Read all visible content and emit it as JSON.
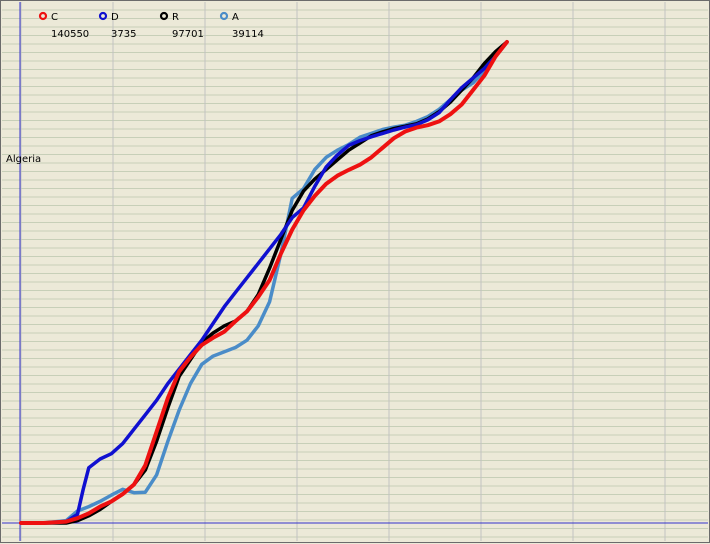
{
  "chart_data": {
    "type": "line",
    "region_label": "Algeria",
    "grid": true,
    "legend_placement": "top-left",
    "series": [
      {
        "name": "C",
        "count": "140550",
        "color": "#ee1111",
        "points": [
          [
            0,
            0
          ],
          [
            4,
            0
          ],
          [
            8,
            0.3
          ],
          [
            10,
            1
          ],
          [
            12,
            2
          ],
          [
            14,
            3.4
          ],
          [
            16,
            4.5
          ],
          [
            18,
            6
          ],
          [
            20,
            8
          ],
          [
            22,
            12
          ],
          [
            24,
            19
          ],
          [
            26,
            26
          ],
          [
            28,
            31.5
          ],
          [
            30,
            34.5
          ],
          [
            32,
            37
          ],
          [
            34,
            38.5
          ],
          [
            36,
            39.8
          ],
          [
            38,
            42
          ],
          [
            40,
            44
          ],
          [
            42,
            47
          ],
          [
            44,
            50.5
          ],
          [
            46,
            56
          ],
          [
            48,
            61
          ],
          [
            50,
            65
          ],
          [
            52,
            68
          ],
          [
            54,
            70.5
          ],
          [
            56,
            72.2
          ],
          [
            58,
            73.4
          ],
          [
            60,
            74.5
          ],
          [
            62,
            76
          ],
          [
            64,
            78
          ],
          [
            66,
            80
          ],
          [
            68,
            81.4
          ],
          [
            70,
            82.2
          ],
          [
            72,
            82.7
          ],
          [
            74,
            83.5
          ],
          [
            76,
            85
          ],
          [
            78,
            87
          ],
          [
            80,
            90
          ],
          [
            82,
            93
          ],
          [
            84,
            97
          ],
          [
            86,
            100
          ]
        ]
      },
      {
        "name": "D",
        "count": "3735",
        "color": "#1010d0",
        "points": [
          [
            0,
            0
          ],
          [
            4,
            0
          ],
          [
            8,
            0.3
          ],
          [
            10,
            1.8
          ],
          [
            11,
            7
          ],
          [
            12,
            11.5
          ],
          [
            14,
            13.3
          ],
          [
            16,
            14.4
          ],
          [
            18,
            16.5
          ],
          [
            20,
            19.5
          ],
          [
            22,
            22.5
          ],
          [
            24,
            25.5
          ],
          [
            26,
            29
          ],
          [
            28,
            32
          ],
          [
            30,
            35
          ],
          [
            32,
            38
          ],
          [
            34,
            41.5
          ],
          [
            36,
            45
          ],
          [
            38,
            48
          ],
          [
            40,
            51
          ],
          [
            42,
            54
          ],
          [
            44,
            57
          ],
          [
            46,
            60
          ],
          [
            48,
            63.5
          ],
          [
            50,
            65.5
          ],
          [
            52,
            70
          ],
          [
            54,
            74
          ],
          [
            56,
            76.5
          ],
          [
            58,
            78.5
          ],
          [
            60,
            79.5
          ],
          [
            62,
            80.3
          ],
          [
            64,
            81
          ],
          [
            66,
            81.7
          ],
          [
            68,
            82.3
          ],
          [
            70,
            82.8
          ],
          [
            72,
            83.8
          ],
          [
            74,
            85.3
          ],
          [
            76,
            88
          ],
          [
            78,
            90.5
          ],
          [
            80,
            92.5
          ],
          [
            82,
            94.5
          ],
          [
            84,
            97
          ],
          [
            86,
            100
          ]
        ]
      },
      {
        "name": "R",
        "count": "97701",
        "color": "#000000",
        "points": [
          [
            0,
            0
          ],
          [
            4,
            0
          ],
          [
            8,
            0
          ],
          [
            10,
            0.5
          ],
          [
            12,
            1.5
          ],
          [
            14,
            2.8
          ],
          [
            16,
            4.5
          ],
          [
            18,
            6
          ],
          [
            20,
            8
          ],
          [
            22,
            11
          ],
          [
            24,
            17
          ],
          [
            26,
            24
          ],
          [
            28,
            30.5
          ],
          [
            30,
            34
          ],
          [
            32,
            37.5
          ],
          [
            34,
            39.5
          ],
          [
            36,
            41
          ],
          [
            38,
            42
          ],
          [
            40,
            44
          ],
          [
            42,
            47.5
          ],
          [
            44,
            53
          ],
          [
            46,
            59
          ],
          [
            48,
            65
          ],
          [
            50,
            69
          ],
          [
            52,
            71.5
          ],
          [
            54,
            73.5
          ],
          [
            56,
            75.5
          ],
          [
            58,
            77.5
          ],
          [
            60,
            79
          ],
          [
            62,
            80.5
          ],
          [
            64,
            81.3
          ],
          [
            66,
            82
          ],
          [
            68,
            82.5
          ],
          [
            70,
            83
          ],
          [
            72,
            84
          ],
          [
            74,
            85.5
          ],
          [
            76,
            87.5
          ],
          [
            78,
            90
          ],
          [
            80,
            92.5
          ],
          [
            82,
            95.5
          ],
          [
            84,
            98
          ],
          [
            86,
            100
          ]
        ]
      },
      {
        "name": "A",
        "count": "39114",
        "color": "#4a8cc8",
        "points": [
          [
            0,
            0
          ],
          [
            4,
            0
          ],
          [
            8,
            0.5
          ],
          [
            10,
            2.5
          ],
          [
            12,
            3.4
          ],
          [
            14,
            4.5
          ],
          [
            16,
            5.8
          ],
          [
            18,
            7
          ],
          [
            20,
            6.3
          ],
          [
            22,
            6.4
          ],
          [
            24,
            10
          ],
          [
            26,
            17
          ],
          [
            28,
            23.5
          ],
          [
            30,
            29
          ],
          [
            32,
            33
          ],
          [
            34,
            34.7
          ],
          [
            36,
            35.6
          ],
          [
            38,
            36.5
          ],
          [
            40,
            38
          ],
          [
            42,
            41
          ],
          [
            44,
            46
          ],
          [
            46,
            56
          ],
          [
            48,
            67.5
          ],
          [
            50,
            69.5
          ],
          [
            52,
            73.5
          ],
          [
            54,
            76
          ],
          [
            56,
            77.5
          ],
          [
            58,
            78.7
          ],
          [
            60,
            80.2
          ],
          [
            62,
            81
          ],
          [
            64,
            81.8
          ],
          [
            66,
            82.3
          ],
          [
            68,
            82.7
          ],
          [
            70,
            83.5
          ],
          [
            72,
            84.5
          ],
          [
            74,
            86
          ],
          [
            76,
            88
          ],
          [
            78,
            90
          ],
          [
            80,
            91.5
          ],
          [
            82,
            94
          ],
          [
            84,
            97
          ],
          [
            86,
            100
          ]
        ]
      }
    ]
  }
}
